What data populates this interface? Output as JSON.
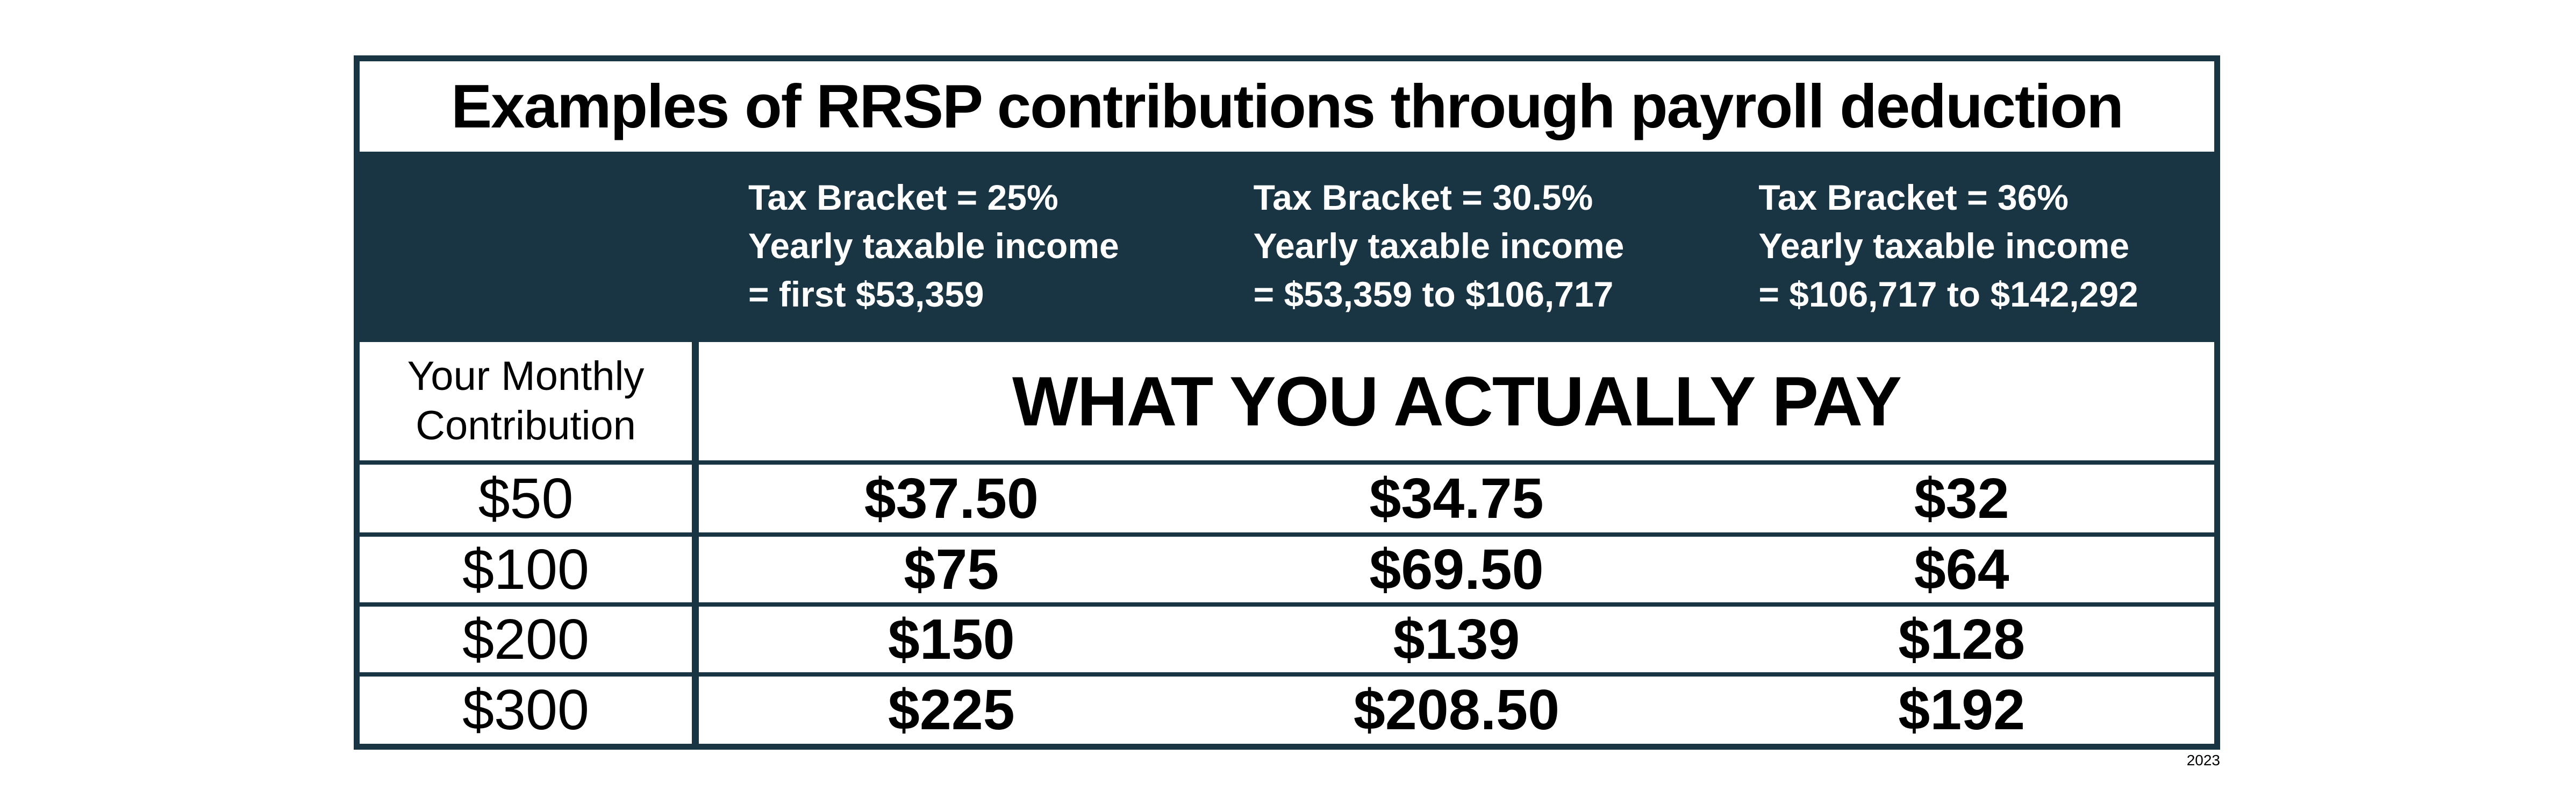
{
  "page": {
    "background_color": "#ffffff",
    "accent_dark_color": "#193443",
    "year_note": "2023"
  },
  "table": {
    "title": "Examples of RRSP contributions through payroll deduction",
    "bracket_headers": [
      {
        "line1": "Tax Bracket = 25%",
        "line2": "Yearly taxable income",
        "line3": "= first $53,359"
      },
      {
        "line1": "Tax Bracket = 30.5%",
        "line2": "Yearly taxable income",
        "line3": "= $53,359 to $106,717"
      },
      {
        "line1": "Tax Bracket = 36%",
        "line2": "Yearly taxable income",
        "line3": "= $106,717 to $142,292"
      }
    ],
    "row_header": {
      "line1": "Your Monthly",
      "line2": "Contribution"
    },
    "pay_header": "WHAT YOU ACTUALLY PAY",
    "rows": [
      {
        "contribution": "$50",
        "values": [
          "$37.50",
          "$34.75",
          "$32"
        ]
      },
      {
        "contribution": "$100",
        "values": [
          "$75",
          "$69.50",
          "$64"
        ]
      },
      {
        "contribution": "$200",
        "values": [
          "$150",
          "$139",
          "$128"
        ]
      },
      {
        "contribution": "$300",
        "values": [
          "$225",
          "$208.50",
          "$192"
        ]
      }
    ]
  },
  "chart_data": {
    "type": "table",
    "title": "Examples of RRSP contributions through payroll deduction",
    "section_header": "WHAT YOU ACTUALLY PAY",
    "columns": [
      "Your Monthly Contribution",
      "Tax Bracket = 25% | Yearly taxable income = first $53,359",
      "Tax Bracket = 30.5% | Yearly taxable income = $53,359 to $106,717",
      "Tax Bracket = 36% | Yearly taxable income = $106,717 to $142,292"
    ],
    "rows": [
      [
        "$50",
        "$37.50",
        "$34.75",
        "$32"
      ],
      [
        "$100",
        "$75",
        "$69.50",
        "$64"
      ],
      [
        "$200",
        "$150",
        "$139",
        "$128"
      ],
      [
        "$300",
        "$225",
        "$208.50",
        "$192"
      ]
    ],
    "footnote": "2023",
    "colors": {
      "header_band_background": "#193443",
      "header_band_text": "#ffffff",
      "body_text": "#000000"
    }
  }
}
